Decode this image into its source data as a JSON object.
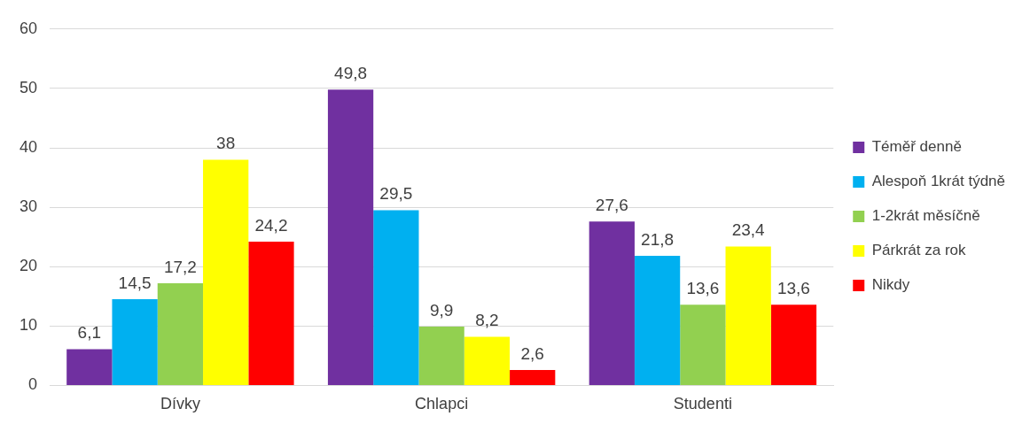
{
  "chart_data": {
    "type": "bar",
    "categories": [
      "Dívky",
      "Chlapci",
      "Studenti"
    ],
    "series": [
      {
        "name": "Téměř denně",
        "color": "#7030a0",
        "values": [
          6.1,
          49.8,
          27.6
        ],
        "value_labels": [
          "6,1",
          "49,8",
          "27,6"
        ]
      },
      {
        "name": "Alespoň 1krát týdně",
        "color": "#00b0f0",
        "values": [
          14.5,
          29.5,
          21.8
        ],
        "value_labels": [
          "14,5",
          "29,5",
          "21,8"
        ]
      },
      {
        "name": "1-2krát měsíčně",
        "color": "#92d050",
        "values": [
          17.2,
          9.9,
          13.6
        ],
        "value_labels": [
          "17,2",
          "9,9",
          "13,6"
        ]
      },
      {
        "name": "Párkrát za rok",
        "color": "#ffff00",
        "values": [
          38,
          8.2,
          23.4
        ],
        "value_labels": [
          "38",
          "8,2",
          "23,4"
        ]
      },
      {
        "name": "Nikdy",
        "color": "#ff0000",
        "values": [
          24.2,
          2.6,
          13.6
        ],
        "value_labels": [
          "24,2",
          "2,6",
          "13,6"
        ]
      }
    ],
    "ylim": [
      0,
      60
    ],
    "yticks": [
      0,
      10,
      20,
      30,
      40,
      50,
      60
    ],
    "grid": "y",
    "legend": "right"
  }
}
